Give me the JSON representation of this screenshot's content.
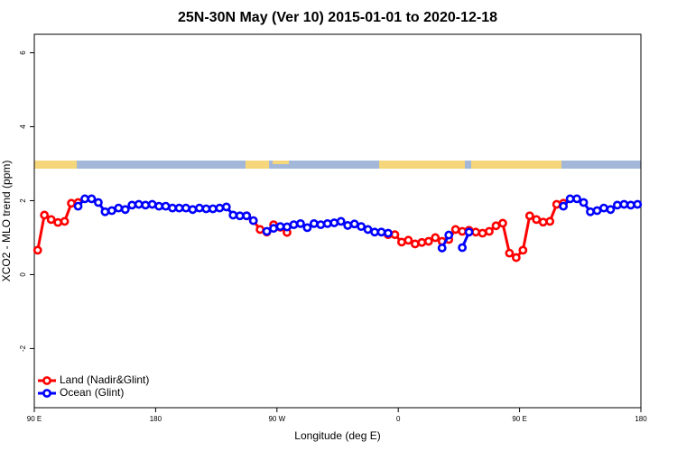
{
  "chart_data": {
    "type": "line",
    "title": "25N-30N May (Ver 10)   2015-01-01 to 2020-12-18",
    "x_label": "Longitude (deg E)",
    "y_label": "XCO2 - MLO trend (ppm)",
    "xlim": [
      90,
      540
    ],
    "ylim": [
      -3.6,
      6.5
    ],
    "xticks": [
      {
        "value": 90,
        "label": "90 E"
      },
      180,
      {
        "value": 270,
        "label": "90 W"
      },
      {
        "value": 360,
        "label": "0"
      },
      {
        "value": 450,
        "label": "90 E"
      },
      {
        "value": 540,
        "label": "180"
      }
    ],
    "yticks": [
      -2,
      0,
      2,
      4,
      6
    ],
    "legend": "bottom-left",
    "x": [
      92.5,
      97.5,
      102.5,
      107.5,
      112.5,
      117.5,
      122.5,
      127.5,
      132.5,
      137.5,
      142.5,
      147.5,
      152.5,
      157.5,
      162.5,
      167.5,
      172.5,
      177.5,
      182.5,
      187.5,
      192.5,
      197.5,
      202.5,
      207.5,
      212.5,
      217.5,
      222.5,
      227.5,
      232.5,
      237.5,
      242.5,
      247.5,
      252.5,
      257.5,
      262.5,
      267.5,
      272.5,
      277.5,
      282.5,
      287.5,
      292.5,
      297.5,
      302.5,
      307.5,
      312.5,
      317.5,
      322.5,
      327.5,
      332.5,
      337.5,
      342.5,
      347.5,
      352.5,
      357.5,
      362.5,
      367.5,
      372.5,
      377.5,
      382.5,
      387.5,
      392.5,
      397.5,
      402.5,
      407.5,
      412.5,
      417.5,
      422.5,
      427.5,
      432.5,
      437.5,
      442.5,
      447.5,
      452.5,
      457.5,
      462.5,
      467.5,
      472.5,
      477.5,
      482.5,
      487.5,
      492.5,
      497.5,
      502.5,
      507.5,
      512.5,
      517.5,
      522.5,
      527.5,
      532.5,
      537.5
    ],
    "series": [
      {
        "name": "Land (Nadir&Glint)",
        "color": "#ff0000",
        "values": [
          0.66,
          1.61,
          1.49,
          1.41,
          1.44,
          1.93,
          1.95,
          null,
          null,
          null,
          null,
          null,
          null,
          null,
          null,
          null,
          null,
          null,
          null,
          null,
          null,
          null,
          null,
          null,
          null,
          null,
          null,
          null,
          null,
          null,
          null,
          1.59,
          1.46,
          1.22,
          1.15,
          1.35,
          1.28,
          1.14,
          null,
          null,
          null,
          null,
          null,
          null,
          null,
          null,
          null,
          null,
          null,
          null,
          null,
          null,
          1.08,
          1.08,
          0.88,
          0.93,
          0.83,
          0.87,
          0.9,
          1.0,
          0.9,
          0.95,
          1.22,
          1.17,
          1.2,
          1.15,
          1.12,
          1.17,
          1.32,
          1.39,
          0.58,
          0.46,
          0.66,
          1.59,
          1.49,
          1.42,
          1.44,
          1.9,
          1.93,
          null,
          null,
          null,
          null,
          null,
          null,
          null,
          null,
          null,
          null,
          null
        ]
      },
      {
        "name": "Ocean (Glint)",
        "color": "#0000ff",
        "values": [
          null,
          null,
          null,
          null,
          null,
          null,
          1.85,
          2.05,
          2.05,
          1.95,
          1.7,
          1.73,
          1.8,
          1.76,
          1.88,
          1.9,
          1.88,
          1.9,
          1.85,
          1.85,
          1.8,
          1.8,
          1.8,
          1.76,
          1.8,
          1.78,
          1.78,
          1.8,
          1.83,
          1.61,
          1.59,
          1.59,
          1.46,
          null,
          1.17,
          1.25,
          1.3,
          1.29,
          1.35,
          1.38,
          1.27,
          1.38,
          1.35,
          1.38,
          1.4,
          1.44,
          1.33,
          1.37,
          1.3,
          1.22,
          1.15,
          1.15,
          1.12,
          null,
          null,
          null,
          null,
          null,
          null,
          null,
          0.72,
          1.07,
          null,
          0.73,
          1.15,
          null,
          null,
          null,
          null,
          null,
          null,
          null,
          null,
          null,
          null,
          null,
          null,
          null,
          1.85,
          2.05,
          2.05,
          1.95,
          1.7,
          1.73,
          1.8,
          1.76,
          1.88,
          1.9,
          1.88,
          1.9
        ]
      }
    ]
  }
}
